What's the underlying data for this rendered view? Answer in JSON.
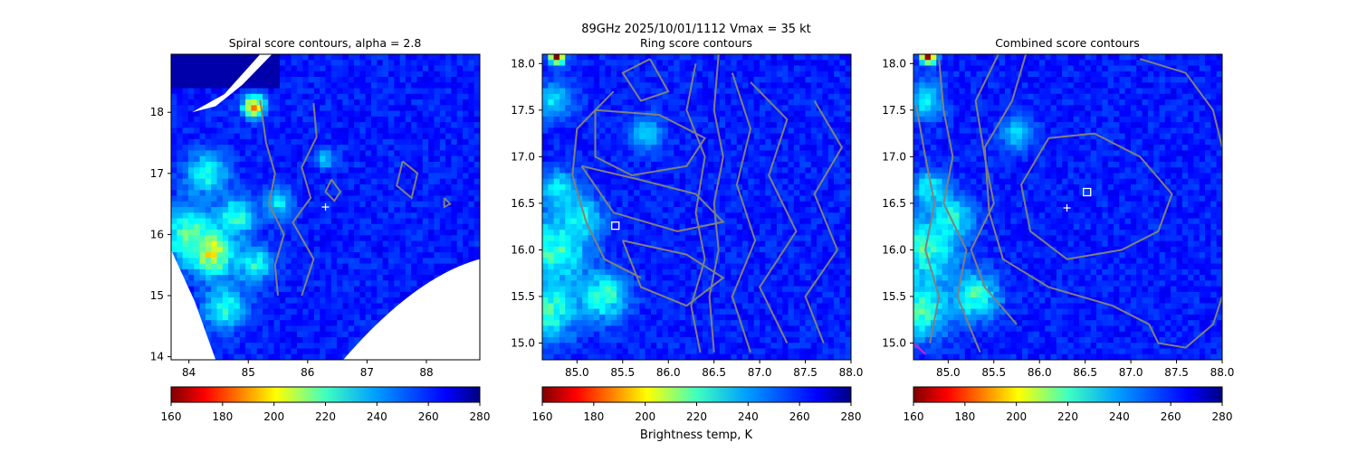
{
  "suptitle": "89GHz  2025/10/01/1112    Vmax = 35 kt",
  "colors": {
    "storm_center_marker": "#ffffff",
    "contour": "#808080",
    "accent_magenta": "#d020d0"
  },
  "colorbar": {
    "cmap": "jet_r",
    "min": 160,
    "max": 280,
    "ticks": [
      "160",
      "180",
      "200",
      "220",
      "240",
      "260",
      "280"
    ],
    "label": "Brightness temp, K"
  },
  "chart_data": [
    {
      "type": "heatmap",
      "title": "Spiral score contours, alpha =  2.8",
      "xlim": [
        83.7,
        88.9
      ],
      "ylim": [
        13.95,
        18.95
      ],
      "xticks": [
        "84",
        "85",
        "86",
        "87",
        "88"
      ],
      "yticks": [
        "14",
        "15",
        "16",
        "17",
        "18"
      ],
      "xtick_values": [
        84,
        85,
        86,
        87,
        88
      ],
      "ytick_values": [
        14,
        15,
        16,
        17,
        18
      ],
      "background_tb": 262,
      "convection": [
        {
          "x": 84.4,
          "y": 15.7,
          "tb": 205,
          "r": 0.35
        },
        {
          "x": 84.0,
          "y": 16.0,
          "tb": 225,
          "r": 0.45
        },
        {
          "x": 84.8,
          "y": 16.3,
          "tb": 228,
          "r": 0.3
        },
        {
          "x": 85.1,
          "y": 15.5,
          "tb": 232,
          "r": 0.3
        },
        {
          "x": 84.6,
          "y": 14.8,
          "tb": 232,
          "r": 0.35
        },
        {
          "x": 84.3,
          "y": 17.0,
          "tb": 232,
          "r": 0.35
        },
        {
          "x": 85.1,
          "y": 18.1,
          "tb": 200,
          "r": 0.18
        },
        {
          "x": 85.5,
          "y": 16.5,
          "tb": 238,
          "r": 0.25
        },
        {
          "x": 86.3,
          "y": 17.25,
          "tb": 240,
          "r": 0.16
        }
      ],
      "swath": {
        "west_edge": [
          [
            83.7,
            15.75
          ],
          [
            84.1,
            14.9
          ],
          [
            84.45,
            13.95
          ]
        ],
        "southeast_gap": true
      },
      "center_marker": {
        "x": 86.3,
        "y": 16.45,
        "shape": "plus"
      },
      "contours": [
        [
          [
            85.2,
            18.2
          ],
          [
            85.3,
            17.5
          ],
          [
            85.45,
            17.0
          ],
          [
            85.35,
            16.5
          ],
          [
            85.6,
            16.0
          ],
          [
            85.45,
            15.5
          ],
          [
            85.5,
            15.0
          ]
        ],
        [
          [
            86.1,
            18.15
          ],
          [
            86.15,
            17.6
          ],
          [
            85.9,
            17.1
          ],
          [
            86.05,
            16.6
          ],
          [
            85.75,
            16.2
          ],
          [
            86.1,
            15.6
          ],
          [
            85.9,
            15.0
          ]
        ],
        [
          [
            86.4,
            16.9
          ],
          [
            86.55,
            16.7
          ],
          [
            86.45,
            16.55
          ],
          [
            86.3,
            16.7
          ],
          [
            86.4,
            16.9
          ]
        ],
        [
          [
            87.6,
            17.2
          ],
          [
            87.85,
            17.0
          ],
          [
            87.75,
            16.6
          ],
          [
            87.5,
            16.8
          ],
          [
            87.6,
            17.2
          ]
        ],
        [
          [
            88.3,
            16.6
          ],
          [
            88.4,
            16.5
          ],
          [
            88.3,
            16.45
          ],
          [
            88.3,
            16.6
          ]
        ]
      ]
    },
    {
      "type": "heatmap",
      "title": "Ring score contours",
      "xlim": [
        84.62,
        88.0
      ],
      "ylim": [
        14.82,
        18.1
      ],
      "xticks": [
        "85.0",
        "85.5",
        "86.0",
        "86.5",
        "87.0",
        "87.5",
        "88.0"
      ],
      "yticks": [
        "15.0",
        "15.5",
        "16.0",
        "16.5",
        "17.0",
        "17.5",
        "18.0"
      ],
      "xtick_values": [
        85.0,
        85.5,
        86.0,
        86.5,
        87.0,
        87.5,
        88.0
      ],
      "ytick_values": [
        15.0,
        15.5,
        16.0,
        16.5,
        17.0,
        17.5,
        18.0
      ],
      "background_tb": 262,
      "convection": [
        {
          "x": 84.75,
          "y": 16.0,
          "tb": 228,
          "r": 0.35
        },
        {
          "x": 84.7,
          "y": 15.35,
          "tb": 228,
          "r": 0.3
        },
        {
          "x": 85.3,
          "y": 15.5,
          "tb": 228,
          "r": 0.25
        },
        {
          "x": 85.05,
          "y": 16.35,
          "tb": 232,
          "r": 0.22
        },
        {
          "x": 84.8,
          "y": 16.65,
          "tb": 235,
          "r": 0.2
        },
        {
          "x": 85.75,
          "y": 17.25,
          "tb": 240,
          "r": 0.18
        },
        {
          "x": 84.75,
          "y": 17.6,
          "tb": 238,
          "r": 0.2
        },
        {
          "x": 84.78,
          "y": 18.08,
          "tb": 170,
          "r": 0.08
        }
      ],
      "center_marker": {
        "x": 85.42,
        "y": 16.26,
        "shape": "square"
      },
      "contours": [
        [
          [
            86.55,
            18.1
          ],
          [
            86.5,
            17.5
          ],
          [
            86.6,
            17.0
          ],
          [
            86.5,
            16.5
          ],
          [
            86.55,
            16.0
          ],
          [
            86.45,
            15.5
          ],
          [
            86.5,
            14.9
          ]
        ],
        [
          [
            86.3,
            18.0
          ],
          [
            86.2,
            17.5
          ],
          [
            86.4,
            17.0
          ],
          [
            86.3,
            16.4
          ],
          [
            86.4,
            15.9
          ],
          [
            86.25,
            15.4
          ],
          [
            86.35,
            14.9
          ]
        ],
        [
          [
            85.2,
            17.5
          ],
          [
            85.9,
            17.45
          ],
          [
            86.4,
            17.2
          ],
          [
            86.2,
            16.9
          ],
          [
            85.6,
            16.8
          ],
          [
            85.2,
            17.0
          ],
          [
            85.2,
            17.5
          ]
        ],
        [
          [
            85.05,
            16.9
          ],
          [
            85.7,
            16.75
          ],
          [
            86.3,
            16.6
          ],
          [
            86.6,
            16.3
          ],
          [
            86.1,
            16.2
          ],
          [
            85.4,
            16.4
          ],
          [
            85.05,
            16.9
          ]
        ],
        [
          [
            85.5,
            16.1
          ],
          [
            86.2,
            15.95
          ],
          [
            86.6,
            15.7
          ],
          [
            86.2,
            15.4
          ],
          [
            85.7,
            15.6
          ],
          [
            85.5,
            16.1
          ]
        ],
        [
          [
            85.4,
            17.7
          ],
          [
            85.0,
            17.3
          ],
          [
            84.95,
            16.8
          ],
          [
            85.1,
            16.3
          ],
          [
            85.3,
            15.9
          ],
          [
            85.7,
            15.7
          ]
        ],
        [
          [
            86.9,
            17.8
          ],
          [
            87.3,
            17.4
          ],
          [
            87.1,
            16.8
          ],
          [
            87.4,
            16.2
          ],
          [
            87.0,
            15.6
          ],
          [
            87.3,
            15.0
          ]
        ],
        [
          [
            87.6,
            17.6
          ],
          [
            87.9,
            17.1
          ],
          [
            87.6,
            16.6
          ],
          [
            87.85,
            16.0
          ],
          [
            87.5,
            15.5
          ],
          [
            87.7,
            15.0
          ]
        ],
        [
          [
            86.7,
            17.9
          ],
          [
            86.9,
            17.3
          ],
          [
            86.75,
            16.7
          ],
          [
            86.95,
            16.1
          ],
          [
            86.7,
            15.5
          ],
          [
            86.9,
            14.9
          ]
        ],
        [
          [
            85.8,
            18.05
          ],
          [
            86.0,
            17.7
          ],
          [
            85.7,
            17.6
          ],
          [
            85.5,
            17.9
          ],
          [
            85.8,
            18.05
          ]
        ]
      ]
    },
    {
      "type": "heatmap",
      "title": "Combined score contours",
      "xlim": [
        84.62,
        88.0
      ],
      "ylim": [
        14.82,
        18.1
      ],
      "xticks": [
        "85.0",
        "85.5",
        "86.0",
        "86.5",
        "87.0",
        "87.5",
        "88.0"
      ],
      "yticks": [
        "15.0",
        "15.5",
        "16.0",
        "16.5",
        "17.0",
        "17.5",
        "18.0"
      ],
      "xtick_values": [
        85.0,
        85.5,
        86.0,
        86.5,
        87.0,
        87.5,
        88.0
      ],
      "ytick_values": [
        15.0,
        15.5,
        16.0,
        16.5,
        17.0,
        17.5,
        18.0
      ],
      "background_tb": 262,
      "convection": [
        {
          "x": 84.75,
          "y": 16.0,
          "tb": 228,
          "r": 0.35
        },
        {
          "x": 84.7,
          "y": 15.35,
          "tb": 228,
          "r": 0.3
        },
        {
          "x": 85.3,
          "y": 15.5,
          "tb": 228,
          "r": 0.25
        },
        {
          "x": 85.05,
          "y": 16.35,
          "tb": 232,
          "r": 0.22
        },
        {
          "x": 84.8,
          "y": 16.65,
          "tb": 235,
          "r": 0.2
        },
        {
          "x": 85.75,
          "y": 17.25,
          "tb": 240,
          "r": 0.18
        },
        {
          "x": 84.75,
          "y": 17.6,
          "tb": 238,
          "r": 0.2
        },
        {
          "x": 84.78,
          "y": 18.08,
          "tb": 170,
          "r": 0.08
        }
      ],
      "center_marker": {
        "x": 86.52,
        "y": 16.62,
        "shape": "square"
      },
      "plus_marker": {
        "x": 86.3,
        "y": 16.45,
        "shape": "plus"
      },
      "contours": [
        [
          [
            86.1,
            17.2
          ],
          [
            86.6,
            17.25
          ],
          [
            87.1,
            17.0
          ],
          [
            87.45,
            16.6
          ],
          [
            87.3,
            16.2
          ],
          [
            86.9,
            16.0
          ],
          [
            86.3,
            15.9
          ],
          [
            85.9,
            16.2
          ],
          [
            85.8,
            16.7
          ],
          [
            86.1,
            17.2
          ]
        ],
        [
          [
            85.85,
            18.1
          ],
          [
            85.7,
            17.6
          ],
          [
            85.4,
            17.1
          ],
          [
            85.45,
            16.4
          ],
          [
            85.6,
            15.9
          ],
          [
            86.1,
            15.6
          ],
          [
            86.8,
            15.4
          ],
          [
            87.2,
            15.2
          ],
          [
            87.3,
            15.0
          ],
          [
            87.6,
            14.95
          ],
          [
            87.9,
            15.2
          ],
          [
            88.0,
            15.5
          ]
        ],
        [
          [
            87.1,
            18.05
          ],
          [
            87.6,
            17.9
          ],
          [
            87.9,
            17.5
          ],
          [
            88.0,
            17.1
          ]
        ],
        [
          [
            85.55,
            18.1
          ],
          [
            85.3,
            17.6
          ],
          [
            85.4,
            17.0
          ],
          [
            85.5,
            16.5
          ],
          [
            85.25,
            16.0
          ],
          [
            85.4,
            15.6
          ],
          [
            85.75,
            15.2
          ]
        ],
        [
          [
            84.9,
            18.05
          ],
          [
            84.95,
            17.5
          ],
          [
            85.05,
            17.0
          ],
          [
            84.95,
            16.5
          ],
          [
            85.2,
            16.0
          ],
          [
            85.1,
            15.5
          ],
          [
            85.35,
            14.9
          ]
        ],
        [
          [
            84.65,
            17.55
          ],
          [
            84.75,
            17.0
          ],
          [
            84.85,
            16.5
          ],
          [
            84.75,
            16.0
          ],
          [
            84.9,
            15.5
          ],
          [
            84.8,
            15.0
          ]
        ]
      ],
      "magenta_segment": [
        [
          84.62,
          15.0
        ],
        [
          84.75,
          14.88
        ]
      ]
    }
  ]
}
